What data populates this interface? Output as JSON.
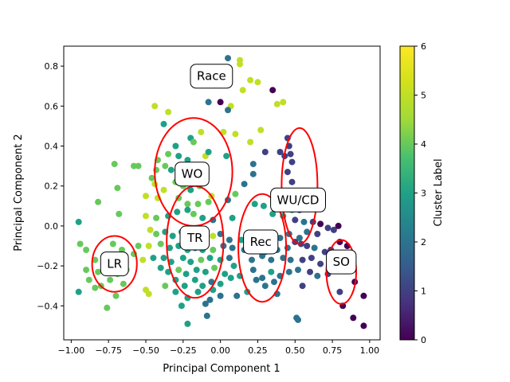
{
  "chart_data": {
    "type": "scatter",
    "title": "",
    "xlabel": "Principal Component 1",
    "ylabel": "Principal Component 2",
    "xlim": [
      -1.05,
      1.07
    ],
    "ylim": [
      -0.57,
      0.9
    ],
    "xticks": [
      -1.0,
      -0.75,
      -0.5,
      -0.25,
      0.0,
      0.25,
      0.5,
      0.75,
      1.0
    ],
    "xtick_labels": [
      "−1.00",
      "−0.75",
      "−0.50",
      "−0.25",
      "0.00",
      "0.25",
      "0.50",
      "0.75",
      "1.00"
    ],
    "yticks": [
      -0.4,
      -0.2,
      0.0,
      0.2,
      0.4,
      0.6,
      0.8
    ],
    "ytick_labels": [
      "−0.4",
      "−0.2",
      "0.0",
      "0.2",
      "0.4",
      "0.6",
      "0.8"
    ],
    "grid": false,
    "colormap": "viridis",
    "colorbar": {
      "label": "Cluster Label",
      "range": [
        0,
        6
      ],
      "ticks": [
        0,
        1,
        2,
        3,
        4,
        5,
        6
      ],
      "tick_labels": [
        "0",
        "1",
        "2",
        "3",
        "4",
        "5",
        "6"
      ]
    },
    "points": [
      [
        0.05,
        0.84,
        2
      ],
      [
        0.13,
        0.83,
        5
      ],
      [
        0.13,
        0.81,
        5
      ],
      [
        0.2,
        0.73,
        5
      ],
      [
        0.25,
        0.72,
        5
      ],
      [
        0.15,
        0.68,
        5
      ],
      [
        0.35,
        0.68,
        0
      ],
      [
        0.0,
        0.62,
        0
      ],
      [
        0.07,
        0.6,
        5
      ],
      [
        -0.08,
        0.62,
        2
      ],
      [
        0.05,
        0.58,
        2
      ],
      [
        0.38,
        0.61,
        5
      ],
      [
        0.42,
        0.62,
        5
      ],
      [
        -0.44,
        0.6,
        5
      ],
      [
        -0.35,
        0.57,
        5
      ],
      [
        -0.38,
        0.51,
        3
      ],
      [
        -0.13,
        0.47,
        5
      ],
      [
        0.1,
        0.46,
        5
      ],
      [
        0.02,
        0.47,
        5
      ],
      [
        0.27,
        0.48,
        5
      ],
      [
        0.45,
        0.44,
        1
      ],
      [
        0.46,
        0.4,
        1
      ],
      [
        0.47,
        0.36,
        1
      ],
      [
        0.43,
        0.35,
        1
      ],
      [
        0.48,
        0.32,
        1
      ],
      [
        0.45,
        0.27,
        1
      ],
      [
        0.48,
        0.22,
        1
      ],
      [
        0.49,
        0.17,
        0
      ],
      [
        0.5,
        0.12,
        0
      ],
      [
        0.53,
        0.08,
        1
      ],
      [
        0.2,
        0.42,
        5
      ],
      [
        0.3,
        0.37,
        1
      ],
      [
        0.4,
        0.37,
        1
      ],
      [
        0.22,
        0.31,
        2
      ],
      [
        0.04,
        0.35,
        3
      ],
      [
        0.16,
        0.21,
        2
      ],
      [
        0.22,
        0.26,
        2
      ],
      [
        -0.2,
        0.44,
        3
      ],
      [
        -0.18,
        0.42,
        4
      ],
      [
        -0.3,
        0.4,
        3
      ],
      [
        -0.35,
        0.36,
        4
      ],
      [
        -0.28,
        0.35,
        3
      ],
      [
        -0.22,
        0.33,
        3
      ],
      [
        -0.1,
        0.35,
        5
      ],
      [
        -0.08,
        0.37,
        3
      ],
      [
        -0.42,
        0.33,
        4
      ],
      [
        -0.37,
        0.3,
        4
      ],
      [
        -0.33,
        0.28,
        3
      ],
      [
        -0.26,
        0.27,
        3
      ],
      [
        -0.17,
        0.28,
        5
      ],
      [
        -0.43,
        0.28,
        4
      ],
      [
        -0.46,
        0.24,
        4
      ],
      [
        -0.44,
        0.21,
        5
      ],
      [
        -0.38,
        0.18,
        5
      ],
      [
        -0.3,
        0.22,
        4
      ],
      [
        -0.25,
        0.2,
        4
      ],
      [
        -0.2,
        0.18,
        3
      ],
      [
        -0.14,
        0.2,
        4
      ],
      [
        -0.06,
        0.15,
        5
      ],
      [
        -0.5,
        0.15,
        5
      ],
      [
        -0.42,
        0.14,
        5
      ],
      [
        -0.28,
        0.14,
        4
      ],
      [
        -0.22,
        0.11,
        4
      ],
      [
        -0.15,
        0.11,
        4
      ],
      [
        -0.08,
        0.12,
        4
      ],
      [
        0.05,
        0.13,
        2
      ],
      [
        0.1,
        0.16,
        4
      ],
      [
        0.23,
        0.11,
        3
      ],
      [
        0.29,
        0.1,
        3
      ],
      [
        -0.58,
        0.3,
        4
      ],
      [
        -0.55,
        0.3,
        4
      ],
      [
        -0.71,
        0.31,
        4
      ],
      [
        -0.69,
        0.19,
        4
      ],
      [
        -0.82,
        0.12,
        4
      ],
      [
        -0.68,
        0.06,
        4
      ],
      [
        -0.5,
        0.05,
        5
      ],
      [
        -0.43,
        0.04,
        4
      ],
      [
        -0.35,
        0.05,
        3
      ],
      [
        -0.29,
        0.07,
        3
      ],
      [
        -0.22,
        0.08,
        3
      ],
      [
        -0.18,
        0.06,
        4
      ],
      [
        -0.12,
        0.04,
        3
      ],
      [
        -0.05,
        0.03,
        2
      ],
      [
        0.08,
        0.04,
        3
      ],
      [
        0.35,
        0.06,
        3
      ],
      [
        0.42,
        0.05,
        3
      ],
      [
        0.48,
        0.08,
        3
      ],
      [
        0.5,
        0.03,
        1
      ],
      [
        0.56,
        0.02,
        2
      ],
      [
        0.62,
        0.02,
        1
      ],
      [
        0.67,
        0.01,
        0
      ],
      [
        0.72,
        -0.01,
        1
      ],
      [
        0.76,
        -0.02,
        1
      ],
      [
        0.79,
        0.0,
        0
      ],
      [
        0.65,
        -0.04,
        1
      ],
      [
        0.58,
        -0.03,
        2
      ],
      [
        0.53,
        -0.06,
        2
      ],
      [
        0.46,
        -0.04,
        2
      ],
      [
        0.4,
        -0.06,
        2
      ],
      [
        0.32,
        -0.04,
        2
      ],
      [
        -0.95,
        0.02,
        3
      ],
      [
        -0.47,
        -0.02,
        5
      ],
      [
        -0.43,
        -0.04,
        4
      ],
      [
        -0.37,
        -0.03,
        3
      ],
      [
        -0.32,
        -0.05,
        3
      ],
      [
        -0.26,
        -0.03,
        3
      ],
      [
        -0.21,
        -0.05,
        3
      ],
      [
        -0.14,
        -0.04,
        3
      ],
      [
        -0.05,
        -0.05,
        5
      ],
      [
        0.0,
        -0.04,
        2
      ],
      [
        0.06,
        -0.07,
        2
      ],
      [
        0.14,
        -0.07,
        3
      ],
      [
        0.22,
        -0.05,
        2
      ],
      [
        -0.94,
        -0.09,
        4
      ],
      [
        -0.9,
        -0.12,
        4
      ],
      [
        -0.72,
        -0.09,
        4
      ],
      [
        -0.66,
        -0.12,
        4
      ],
      [
        -0.55,
        -0.1,
        4
      ],
      [
        -0.48,
        -0.1,
        5
      ],
      [
        -0.4,
        -0.09,
        4
      ],
      [
        -0.34,
        -0.11,
        3
      ],
      [
        -0.28,
        -0.1,
        3
      ],
      [
        -0.22,
        -0.12,
        3
      ],
      [
        -0.17,
        -0.11,
        2
      ],
      [
        -0.12,
        -0.12,
        3
      ],
      [
        -0.05,
        -0.12,
        4
      ],
      [
        0.02,
        -0.1,
        2
      ],
      [
        0.08,
        -0.11,
        2
      ],
      [
        0.16,
        -0.12,
        2
      ],
      [
        0.3,
        -0.13,
        2
      ],
      [
        0.38,
        -0.12,
        2
      ],
      [
        0.45,
        -0.11,
        2
      ],
      [
        0.5,
        -0.08,
        1
      ],
      [
        0.54,
        -0.09,
        1
      ],
      [
        0.58,
        -0.1,
        1
      ],
      [
        0.63,
        -0.11,
        2
      ],
      [
        0.7,
        -0.13,
        1
      ],
      [
        0.74,
        -0.12,
        1
      ],
      [
        0.8,
        -0.08,
        0
      ],
      [
        0.85,
        -0.1,
        0
      ],
      [
        -0.84,
        -0.17,
        4
      ],
      [
        -0.77,
        -0.15,
        4
      ],
      [
        -0.72,
        -0.19,
        4
      ],
      [
        -0.65,
        -0.17,
        4
      ],
      [
        -0.58,
        -0.14,
        4
      ],
      [
        -0.52,
        -0.17,
        5
      ],
      [
        -0.45,
        -0.16,
        3
      ],
      [
        -0.38,
        -0.16,
        3
      ],
      [
        -0.33,
        -0.18,
        3
      ],
      [
        -0.25,
        -0.16,
        3
      ],
      [
        -0.2,
        -0.18,
        3
      ],
      [
        -0.13,
        -0.17,
        4
      ],
      [
        -0.07,
        -0.16,
        3
      ],
      [
        0.0,
        -0.17,
        3
      ],
      [
        0.06,
        -0.16,
        2
      ],
      [
        0.21,
        -0.17,
        2
      ],
      [
        0.28,
        -0.15,
        2
      ],
      [
        0.34,
        -0.17,
        2
      ],
      [
        0.42,
        -0.16,
        2
      ],
      [
        0.47,
        -0.17,
        2
      ],
      [
        0.55,
        -0.17,
        1
      ],
      [
        0.61,
        -0.16,
        1
      ],
      [
        0.67,
        -0.19,
        1
      ],
      [
        0.73,
        -0.16,
        1
      ],
      [
        0.78,
        -0.2,
        1
      ],
      [
        -0.9,
        -0.22,
        4
      ],
      [
        -0.82,
        -0.23,
        4
      ],
      [
        -0.76,
        -0.21,
        4
      ],
      [
        -0.69,
        -0.24,
        4
      ],
      [
        -0.63,
        -0.22,
        4
      ],
      [
        -0.4,
        -0.21,
        3
      ],
      [
        -0.35,
        -0.23,
        3
      ],
      [
        -0.28,
        -0.22,
        4
      ],
      [
        -0.23,
        -0.24,
        3
      ],
      [
        -0.16,
        -0.22,
        3
      ],
      [
        -0.1,
        -0.23,
        3
      ],
      [
        -0.04,
        -0.21,
        4
      ],
      [
        0.03,
        -0.24,
        3
      ],
      [
        0.09,
        -0.2,
        3
      ],
      [
        0.22,
        -0.22,
        2
      ],
      [
        0.28,
        -0.26,
        2
      ],
      [
        0.34,
        -0.23,
        3
      ],
      [
        0.4,
        -0.25,
        2
      ],
      [
        0.46,
        -0.23,
        2
      ],
      [
        0.52,
        -0.22,
        2
      ],
      [
        0.6,
        -0.23,
        1
      ],
      [
        0.65,
        -0.25,
        2
      ],
      [
        0.72,
        -0.24,
        1
      ],
      [
        -0.88,
        -0.27,
        4
      ],
      [
        -0.8,
        -0.3,
        4
      ],
      [
        -0.74,
        -0.27,
        4
      ],
      [
        -0.65,
        -0.29,
        4
      ],
      [
        -0.37,
        -0.3,
        4
      ],
      [
        -0.3,
        -0.27,
        3
      ],
      [
        -0.24,
        -0.3,
        3
      ],
      [
        -0.17,
        -0.27,
        3
      ],
      [
        -0.12,
        -0.3,
        3
      ],
      [
        -0.06,
        -0.28,
        2
      ],
      [
        0.0,
        -0.29,
        3
      ],
      [
        0.07,
        -0.26,
        3
      ],
      [
        0.13,
        -0.25,
        3
      ],
      [
        0.24,
        -0.27,
        2
      ],
      [
        0.3,
        -0.3,
        2
      ],
      [
        0.36,
        -0.28,
        2
      ],
      [
        0.55,
        -0.3,
        1
      ],
      [
        -0.95,
        -0.33,
        3
      ],
      [
        -0.84,
        -0.31,
        4
      ],
      [
        -0.7,
        -0.35,
        4
      ],
      [
        -0.5,
        -0.32,
        5
      ],
      [
        -0.48,
        -0.34,
        5
      ],
      [
        -0.3,
        -0.33,
        3
      ],
      [
        -0.22,
        -0.36,
        3
      ],
      [
        -0.15,
        -0.33,
        3
      ],
      [
        -0.07,
        -0.37,
        2
      ],
      [
        -0.05,
        -0.32,
        3
      ],
      [
        0.0,
        -0.35,
        2
      ],
      [
        0.11,
        -0.35,
        2
      ],
      [
        0.18,
        -0.33,
        3
      ],
      [
        0.38,
        -0.34,
        2
      ],
      [
        0.8,
        -0.33,
        1
      ],
      [
        0.9,
        -0.28,
        0
      ],
      [
        0.96,
        -0.35,
        0
      ],
      [
        -0.76,
        -0.41,
        4
      ],
      [
        -0.26,
        -0.4,
        3
      ],
      [
        -0.1,
        -0.39,
        2
      ],
      [
        0.82,
        -0.4,
        0
      ],
      [
        -0.09,
        -0.45,
        2
      ],
      [
        0.51,
        -0.46,
        2
      ],
      [
        0.52,
        -0.47,
        2
      ],
      [
        -0.22,
        -0.49,
        3
      ],
      [
        0.89,
        -0.46,
        0
      ],
      [
        0.96,
        -0.5,
        0
      ]
    ],
    "annotations": [
      {
        "text": "Race",
        "x": -0.06,
        "y": 0.75,
        "ellipse": null
      },
      {
        "text": "WO",
        "x": -0.19,
        "y": 0.26,
        "ellipse": {
          "cx": -0.18,
          "cy": 0.27,
          "rx": 0.26,
          "ry": 0.27
        }
      },
      {
        "text": "TR",
        "x": -0.17,
        "y": -0.06,
        "ellipse": {
          "cx": -0.17,
          "cy": -0.08,
          "rx": 0.19,
          "ry": 0.28
        }
      },
      {
        "text": "LR",
        "x": -0.71,
        "y": -0.19,
        "ellipse": {
          "cx": -0.71,
          "cy": -0.19,
          "rx": 0.15,
          "ry": 0.14
        }
      },
      {
        "text": "Rec",
        "x": 0.27,
        "y": -0.08,
        "ellipse": {
          "cx": 0.28,
          "cy": -0.11,
          "rx": 0.16,
          "ry": 0.27
        }
      },
      {
        "text": "WU/CD",
        "x": 0.52,
        "y": 0.13,
        "ellipse": {
          "cx": 0.53,
          "cy": 0.2,
          "rx": 0.12,
          "ry": 0.29
        }
      },
      {
        "text": "SO",
        "x": 0.81,
        "y": -0.18,
        "ellipse": {
          "cx": 0.81,
          "cy": -0.23,
          "rx": 0.1,
          "ry": 0.16
        }
      }
    ]
  }
}
